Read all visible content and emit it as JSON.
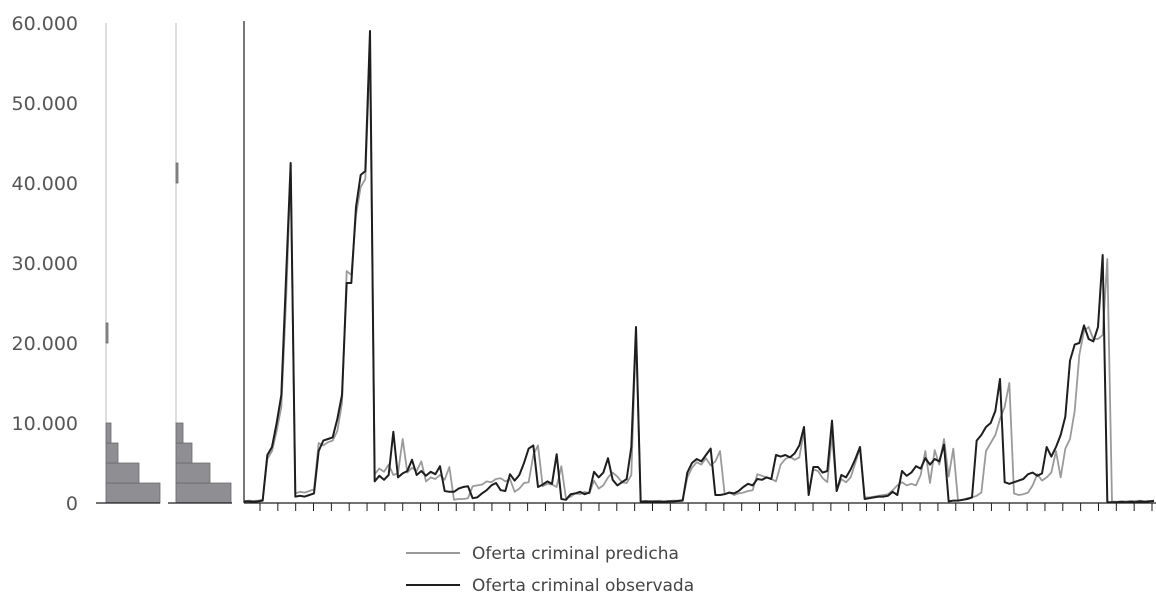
{
  "chart_data": {
    "type": "line",
    "y_tick_labels": [
      "0",
      "10.000",
      "20.000",
      "30.000",
      "40.000",
      "50.000",
      "60.000"
    ],
    "ylim": [
      0,
      60000
    ],
    "x_tick_count": 51,
    "legend_position": "bottom-center",
    "grid": false,
    "series": [
      {
        "name": "Oferta criminal predicha",
        "color": "#9a9a9a",
        "values": [
          200,
          300,
          250,
          300,
          400,
          5500,
          6500,
          9000,
          12000,
          25000,
          41500,
          1200,
          1400,
          1300,
          1500,
          1700,
          7500,
          7200,
          7600,
          7800,
          9000,
          12500,
          29000,
          28500,
          36000,
          39500,
          40500,
          56500,
          3600,
          4300,
          3900,
          4800,
          3500,
          3700,
          8000,
          3800,
          4400,
          4000,
          5200,
          2700,
          3200,
          3000,
          3500,
          2900,
          4500,
          400,
          500,
          500,
          600,
          2100,
          2200,
          2300,
          2700,
          2600,
          3000,
          3100,
          2700,
          3000,
          1400,
          1800,
          2500,
          2600,
          6000,
          7200,
          2100,
          2400,
          2300,
          2000,
          4600,
          600,
          800,
          1200,
          1100,
          1400,
          1200,
          2800,
          1800,
          2200,
          3200,
          3800,
          3300,
          2600,
          2500,
          3500,
          21500,
          200,
          250,
          250,
          200,
          300,
          200,
          250,
          300,
          300,
          400,
          3200,
          4400,
          5100,
          4800,
          5600,
          4700,
          5200,
          6500,
          1100,
          1300,
          1000,
          1200,
          1300,
          1500,
          1600,
          3600,
          3400,
          3200,
          3000,
          2700,
          4800,
          5500,
          5800,
          5400,
          5700,
          9000,
          1200,
          4200,
          4000,
          3100,
          2600,
          8500,
          1500,
          3000,
          2600,
          3200,
          5000,
          7000,
          700,
          700,
          800,
          900,
          1000,
          1100,
          1600,
          2200,
          2600,
          2200,
          2400,
          2200,
          3500,
          6500,
          2500,
          6600,
          4800,
          8000,
          3300,
          6800,
          300,
          400,
          600,
          700,
          900,
          1300,
          6500,
          7500,
          8500,
          10500,
          12000,
          15000,
          1200,
          1000,
          1100,
          1300,
          2200,
          3600,
          2800,
          3200,
          3800,
          6500,
          3200,
          6800,
          8000,
          11500,
          18500,
          21500,
          22000,
          20500,
          20500,
          21000,
          30500,
          200,
          150,
          200,
          200,
          250,
          250,
          300,
          200,
          250,
          300
        ]
      },
      {
        "name": "Oferta criminal observada",
        "color": "#1e1e1e",
        "values": [
          200,
          200,
          150,
          200,
          300,
          6000,
          7000,
          10000,
          13500,
          28000,
          42500,
          800,
          900,
          800,
          1000,
          1200,
          6500,
          7800,
          8000,
          8200,
          10500,
          13500,
          27500,
          27500,
          37000,
          41000,
          41500,
          59000,
          2700,
          3400,
          2900,
          3500,
          8900,
          3200,
          3700,
          4000,
          5400,
          3500,
          4000,
          3400,
          3900,
          3600,
          4600,
          1500,
          1400,
          1400,
          1800,
          2000,
          2100,
          600,
          700,
          1200,
          1600,
          2200,
          2500,
          1600,
          1500,
          3600,
          2800,
          3500,
          5000,
          6800,
          7200,
          2000,
          2300,
          2700,
          2400,
          6100,
          500,
          400,
          1100,
          1200,
          1400,
          1100,
          1300,
          3900,
          3200,
          3800,
          5600,
          2900,
          2200,
          2600,
          3000,
          7000,
          22000,
          150,
          200,
          150,
          200,
          150,
          150,
          200,
          200,
          250,
          300,
          3800,
          5000,
          5500,
          5200,
          6000,
          6800,
          1000,
          1000,
          1100,
          1300,
          1200,
          1500,
          2000,
          2400,
          2200,
          3000,
          2900,
          3200,
          3000,
          6000,
          5800,
          6000,
          5700,
          6200,
          7200,
          9500,
          1000,
          4500,
          4500,
          3800,
          4000,
          10300,
          1500,
          3500,
          3200,
          4200,
          5500,
          7000,
          500,
          600,
          700,
          800,
          800,
          900,
          1400,
          1000,
          4000,
          3400,
          3800,
          4600,
          4300,
          5600,
          4800,
          5500,
          5200,
          7300,
          200,
          300,
          300,
          400,
          500,
          700,
          7800,
          8500,
          9500,
          10000,
          11500,
          15500,
          2600,
          2400,
          2600,
          2800,
          3000,
          3600,
          3800,
          3400,
          3700,
          7000,
          5800,
          7000,
          8500,
          10800,
          17800,
          19800,
          20000,
          22200,
          20500,
          20200,
          22000,
          31000,
          100,
          100,
          100,
          150,
          100,
          150,
          100,
          200,
          150,
          200,
          250
        ]
      }
    ],
    "histograms": [
      {
        "of": "Oferta criminal predicha",
        "bins": [
          {
            "from": 0,
            "to": 2500,
            "count": 54
          },
          {
            "from": 2500,
            "to": 5000,
            "count": 33
          },
          {
            "from": 5000,
            "to": 7500,
            "count": 12
          },
          {
            "from": 7500,
            "to": 10000,
            "count": 5
          },
          {
            "from": 20000,
            "to": 22500,
            "count": 2
          }
        ]
      },
      {
        "of": "Oferta criminal observada",
        "bins": [
          {
            "from": 0,
            "to": 2500,
            "count": 55
          },
          {
            "from": 2500,
            "to": 5000,
            "count": 34
          },
          {
            "from": 5000,
            "to": 7500,
            "count": 16
          },
          {
            "from": 7500,
            "to": 10000,
            "count": 7
          },
          {
            "from": 40000,
            "to": 42500,
            "count": 1
          }
        ]
      }
    ]
  }
}
